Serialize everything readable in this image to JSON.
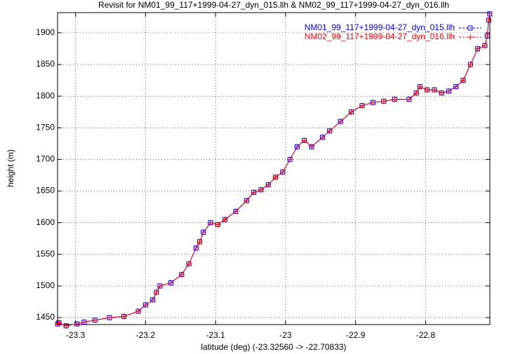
{
  "chart_data": {
    "type": "line",
    "title": "Revisit for NM01_99_117+1999-04-27_dyn_015.llh & NM02_99_117+1999-04-27_dyn_016.llh",
    "x_label": "latitude (deg) (-23.32560 -> -22.70833)",
    "y_label": "height (m)",
    "x": [
      -23.3254,
      -23.3237,
      -23.3134,
      -23.2979,
      -23.2876,
      -23.2722,
      -23.2515,
      -23.2309,
      -23.2103,
      -23.2,
      -23.1897,
      -23.1845,
      -23.1794,
      -23.1639,
      -23.1485,
      -23.1381,
      -23.1278,
      -23.1227,
      -23.1175,
      -23.1072,
      -23.0969,
      -23.0866,
      -23.0711,
      -23.0557,
      -23.0454,
      -23.0351,
      -23.0247,
      -23.0144,
      -23.0041,
      -22.9938,
      -22.9835,
      -22.9732,
      -22.9629,
      -22.9474,
      -22.9371,
      -22.9216,
      -22.9062,
      -22.8907,
      -22.8753,
      -22.8598,
      -22.8443,
      -22.8237,
      -22.8134,
      -22.8082,
      -22.7979,
      -22.7876,
      -22.7773,
      -22.767,
      -22.7567,
      -22.7464,
      -22.7361,
      -22.7258,
      -22.7155,
      -22.712,
      -22.71,
      -22.7085
    ],
    "series": [
      {
        "name": "NM01_99_117+1999-04-27_dyn_015.llh",
        "color": "#0000ff",
        "marker": "square",
        "values": [
          1440,
          1442,
          1437,
          1440,
          1443,
          1446,
          1450,
          1452,
          1460,
          1470,
          1478,
          1490,
          1500,
          1505,
          1518,
          1535,
          1560,
          1570,
          1585,
          1600,
          1597,
          1605,
          1618,
          1635,
          1648,
          1652,
          1660,
          1672,
          1680,
          1700,
          1720,
          1730,
          1720,
          1735,
          1745,
          1760,
          1775,
          1785,
          1790,
          1792,
          1795,
          1795,
          1805,
          1815,
          1810,
          1810,
          1805,
          1808,
          1815,
          1825,
          1850,
          1875,
          1880,
          1895,
          1920,
          1930
        ]
      },
      {
        "name": "NM02_99_117+1999-04-27_dyn_016.llh",
        "color": "#ff0000",
        "marker": "plus",
        "values": [
          1440,
          1442,
          1437,
          1440,
          1443,
          1446,
          1450,
          1452,
          1460,
          1470,
          1478,
          1490,
          1500,
          1505,
          1518,
          1535,
          1560,
          1570,
          1585,
          1600,
          1597,
          1605,
          1618,
          1635,
          1648,
          1652,
          1660,
          1672,
          1680,
          1700,
          1720,
          1730,
          1720,
          1735,
          1745,
          1760,
          1775,
          1785,
          1790,
          1792,
          1795,
          1795,
          1805,
          1815,
          1810,
          1810,
          1805,
          1808,
          1815,
          1825,
          1850,
          1875,
          1880,
          1895,
          1920,
          1930
        ]
      }
    ],
    "xlim": [
      -23.3256,
      -22.70833
    ],
    "xticks": [
      -23.3,
      -23.2,
      -23.1,
      -23,
      -22.9,
      -22.8
    ],
    "ylim": [
      1439,
      1932
    ],
    "yticks": [
      1450,
      1500,
      1550,
      1600,
      1650,
      1700,
      1750,
      1800,
      1850,
      1900
    ],
    "grid": true,
    "legend": "top-right"
  }
}
